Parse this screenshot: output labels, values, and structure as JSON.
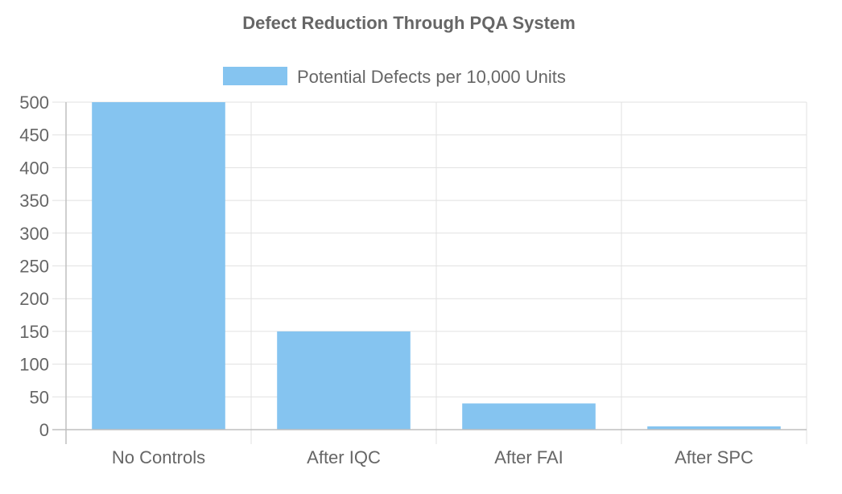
{
  "chart_data": {
    "type": "bar",
    "title": "Defect Reduction Through PQA System",
    "categories": [
      "No Controls",
      "After IQC",
      "After FAI",
      "After SPC"
    ],
    "series": [
      {
        "name": "Potential Defects per 10,000 Units",
        "values": [
          500,
          150,
          40,
          5
        ],
        "color": "#85c4f0"
      }
    ],
    "ylim": [
      0,
      500
    ],
    "yticks": [
      0,
      50,
      100,
      150,
      200,
      250,
      300,
      350,
      400,
      450,
      500
    ],
    "grid": true,
    "legend_position": "top"
  }
}
